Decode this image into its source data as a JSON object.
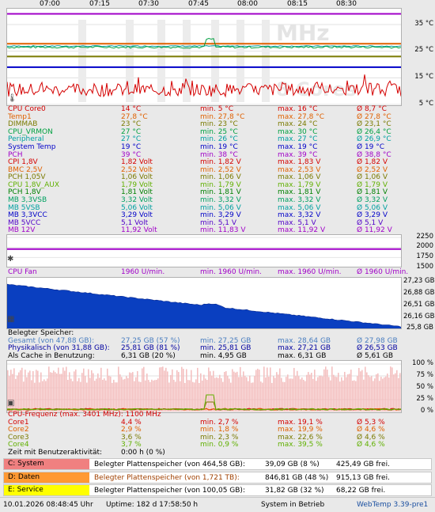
{
  "time_axis": [
    "07:00",
    "07:15",
    "07:30",
    "07:45",
    "08:00",
    "08:15",
    "08:30"
  ],
  "temp_graph": {
    "axis_labels": [
      "35 °C",
      "25 °C",
      "15 °C",
      "5 °C"
    ],
    "watermark_top": "MHz",
    "watermark_bottom": "8 Cores"
  },
  "sensors_temp": [
    {
      "name": "CPU Core0",
      "cur": "14 °C",
      "min": "min. 5 °C",
      "max": "max. 16 °C",
      "avg": "Ø 8,7 °C",
      "color": "#d40000"
    },
    {
      "name": "Temp1",
      "cur": "27,8 °C",
      "min": "min. 27,8 °C",
      "max": "max. 27,8 °C",
      "avg": "Ø 27,8 °C",
      "color": "#e06000"
    },
    {
      "name": "DIMMAB",
      "cur": "23 °C",
      "min": "min. 23 °C",
      "max": "max. 24 °C",
      "avg": "Ø 23,1 °C",
      "color": "#7a7a00"
    },
    {
      "name": "CPU_VRMON",
      "cur": "27 °C",
      "min": "min. 25 °C",
      "max": "max. 30 °C",
      "avg": "Ø 26,4 °C",
      "color": "#00a040"
    },
    {
      "name": "Peripheral",
      "cur": "27 °C",
      "min": "min. 26 °C",
      "max": "max. 27 °C",
      "avg": "Ø 26,9 °C",
      "color": "#00a0a0"
    },
    {
      "name": "System Temp",
      "cur": "19 °C",
      "min": "min. 19 °C",
      "max": "max. 19 °C",
      "avg": "Ø 19 °C",
      "color": "#0000c8"
    },
    {
      "name": "PCH",
      "cur": "39 °C",
      "min": "min. 38 °C",
      "max": "max. 39 °C",
      "avg": "Ø 38,8 °C",
      "color": "#a000c8"
    }
  ],
  "sensors_volt": [
    {
      "name": "CPI 1,8V",
      "cur": "1,82 Volt",
      "min": "min. 1,82 V",
      "max": "max. 1,83 V",
      "avg": "Ø 1,82 V",
      "color": "#d40000"
    },
    {
      "name": "BMC 2,5V",
      "cur": "2,52 Volt",
      "min": "min. 2,52 V",
      "max": "max. 2,53 V",
      "avg": "Ø 2,52 V",
      "color": "#e06000"
    },
    {
      "name": "PCH 1,05V",
      "cur": "1,06 Volt",
      "min": "min. 1,06 V",
      "max": "max. 1,06 V",
      "avg": "Ø 1,06 V",
      "color": "#7a7a00"
    },
    {
      "name": "CPU 1,8V_AUX",
      "cur": "1,79 Volt",
      "min": "min. 1,79 V",
      "max": "max. 1,79 V",
      "avg": "Ø 1,79 V",
      "color": "#60b000"
    },
    {
      "name": "PCH 1,8V",
      "cur": "1,81 Volt",
      "min": "min. 1,81 V",
      "max": "max. 1,81 V",
      "avg": "Ø 1,81 V",
      "color": "#008000"
    },
    {
      "name": "MB 3,3VSB",
      "cur": "3,32 Volt",
      "min": "min. 3,32 V",
      "max": "max. 3,32 V",
      "avg": "Ø 3,32 V",
      "color": "#00a060"
    },
    {
      "name": "MB 5VSB",
      "cur": "5,06 Volt",
      "min": "min. 5,06 V",
      "max": "max. 5,06 V",
      "avg": "Ø 5,06 V",
      "color": "#00a0a0"
    },
    {
      "name": "MB 3,3VCC",
      "cur": "3,29 Volt",
      "min": "min. 3,29 V",
      "max": "max. 3,32 V",
      "avg": "Ø 3,29 V",
      "color": "#0000c8"
    },
    {
      "name": "MB 5VCC",
      "cur": "5,1 Volt",
      "min": "min. 5,1 V",
      "max": "max. 5,1 V",
      "avg": "Ø 5,1 V",
      "color": "#5000c8"
    },
    {
      "name": "MB 12V",
      "cur": "11,92 Volt",
      "min": "min. 11,83 V",
      "max": "max. 11,92 V",
      "avg": "Ø 11,92 V",
      "color": "#a000c8"
    }
  ],
  "fan_graph": {
    "axis_labels": [
      "2250",
      "2000",
      "1750",
      "1500"
    ],
    "row": {
      "name": "CPU Fan",
      "cur": "1960 U/min.",
      "min": "min. 1960 U/min.",
      "max": "max. 1960 U/min.",
      "avg": "Ø 1960 U/min.",
      "color": "#a000c8"
    }
  },
  "mem_graph": {
    "axis_labels": [
      "27,23 GB",
      "26,88 GB",
      "26,51 GB",
      "26,16 GB",
      "25,8 GB"
    ],
    "header": "Belegter Speicher:",
    "rows": [
      {
        "name": "Gesamt (von 47,88 GB):",
        "cur": "27,25 GB (57 %)",
        "min": "min. 27,25 GB",
        "max": "max. 28,64 GB",
        "avg": "Ø 27,98 GB",
        "color": "#4a7ec0"
      },
      {
        "name": "Physikalisch (von 31,88 GB):",
        "cur": "25,81 GB (81 %)",
        "min": "min. 25,81 GB",
        "max": "max. 27,21 GB",
        "avg": "Ø 26,53 GB",
        "color": "#0000a0"
      },
      {
        "name": "Als Cache in Benutzung:",
        "cur": "6,31 GB (20 %)",
        "min": "min. 4,95 GB",
        "max": "max. 6,31 GB",
        "avg": "Ø 5,61 GB",
        "color": "#000000"
      }
    ]
  },
  "cpu_graph": {
    "axis_labels": [
      "100 %",
      "75 %",
      "50 %",
      "25 %",
      "0 %"
    ],
    "header": "CPU-Frequenz (max. 3401 MHz): 1100 MHz",
    "header_color": "#d40000",
    "rows": [
      {
        "name": "Core1",
        "cur": "4,4 %",
        "min": "min. 2,7 %",
        "max": "max. 19,1 %",
        "avg": "Ø 5,3 %",
        "color": "#d40000"
      },
      {
        "name": "Core2",
        "cur": "2,9 %",
        "min": "min. 1,8 %",
        "max": "max. 19,9 %",
        "avg": "Ø 4,6 %",
        "color": "#e06000"
      },
      {
        "name": "Core3",
        "cur": "3,6 %",
        "min": "min. 2,3 %",
        "max": "max. 22,6 %",
        "avg": "Ø 4,6 %",
        "color": "#7a7a00"
      },
      {
        "name": "Core4",
        "cur": "3,7 %",
        "min": "min. 0,9 %",
        "max": "max. 39,5 %",
        "avg": "Ø 4,6 %",
        "color": "#60b000"
      }
    ],
    "idle_label": "Zeit mit Benutzeraktivität:",
    "idle_value": "0:00 h (0 %)"
  },
  "disks": [
    {
      "label": "C: System",
      "color": "#f08080",
      "desc": "Belegter Plattenspeicher (von 464,58 GB):",
      "used": "39,09 GB (8 %)",
      "free": "425,49 GB frei.",
      "desc_color": "#000000"
    },
    {
      "label": "D: Daten",
      "color": "#ff9933",
      "desc": "Belegter Plattenspeicher (von 1,721 TB):",
      "used": "846,81 GB (48 %)",
      "free": "915,13 GB frei.",
      "desc_color": "#a04000"
    },
    {
      "label": "E: Service",
      "color": "#ffff00",
      "desc": "Belegter Plattenspeicher (von 100,05 GB):",
      "used": "31,82 GB (32 %)",
      "free": "68,22 GB frei.",
      "desc_color": "#000000"
    }
  ],
  "status": {
    "datetime": "10.01.2026 08:48:45 Uhr",
    "uptime": "Uptime: 182 d 17:58:50 h",
    "state": "System in Betrieb",
    "app": "WebTemp 3.39-pre1"
  }
}
